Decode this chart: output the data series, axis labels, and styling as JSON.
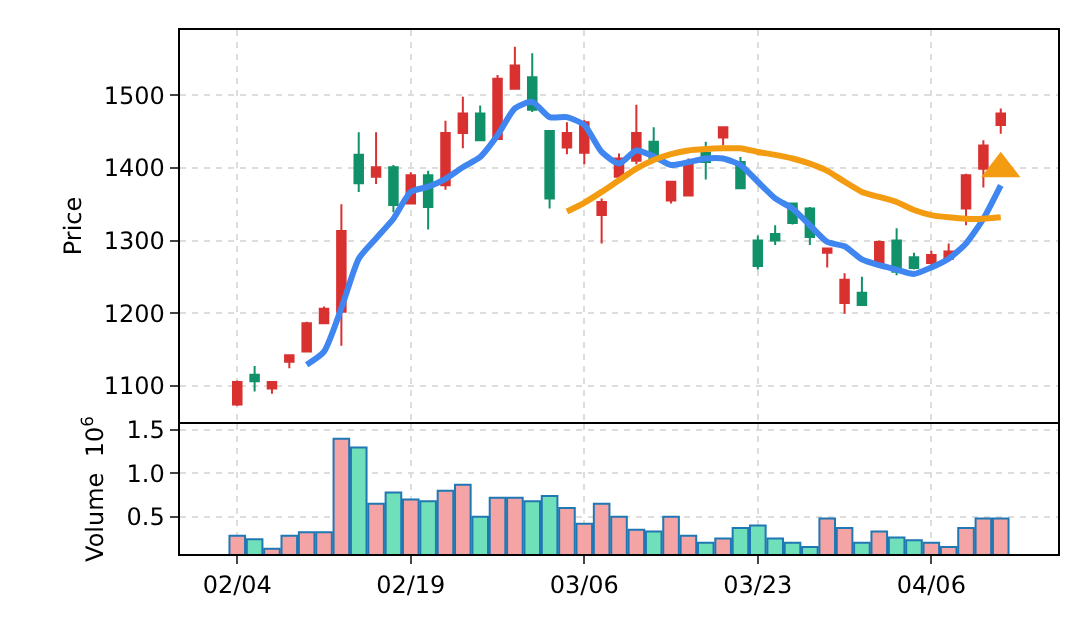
{
  "chart_data": [
    {
      "type": "candlestick",
      "ylabel": "Price",
      "categories": [
        null,
        null,
        null,
        null,
        null,
        null,
        null,
        null,
        null,
        null,
        null,
        null,
        null,
        null,
        null,
        null,
        null,
        null,
        null,
        null,
        null,
        null,
        null,
        null,
        null,
        null,
        null,
        null,
        null,
        null,
        null,
        null,
        null,
        null,
        null,
        null,
        null,
        null,
        null,
        null,
        null,
        null,
        null,
        null,
        null
      ],
      "ohlc": [
        [
          1074,
          1107,
          1072,
          1105
        ],
        [
          1115,
          1127,
          1092,
          1106
        ],
        [
          1096,
          1106,
          1089,
          1105
        ],
        [
          1133,
          1142,
          1124,
          1142
        ],
        [
          1147,
          1188,
          1146,
          1186
        ],
        [
          1186,
          1209,
          1186,
          1206
        ],
        [
          1202,
          1350,
          1155,
          1313
        ],
        [
          1418,
          1449,
          1367,
          1379
        ],
        [
          1388,
          1449,
          1378,
          1401
        ],
        [
          1401,
          1404,
          1339,
          1349
        ],
        [
          1351,
          1394,
          1351,
          1390
        ],
        [
          1390,
          1396,
          1315,
          1346
        ],
        [
          1376,
          1465,
          1370,
          1448
        ],
        [
          1448,
          1498,
          1427,
          1475
        ],
        [
          1475,
          1486,
          1438,
          1438
        ],
        [
          1440,
          1528,
          1440,
          1523
        ],
        [
          1509,
          1567,
          1509,
          1541
        ],
        [
          1525,
          1558,
          1477,
          1480
        ],
        [
          1451,
          1451,
          1344,
          1358
        ],
        [
          1428,
          1463,
          1419,
          1448
        ],
        [
          1421,
          1466,
          1405,
          1463
        ],
        [
          1335,
          1358,
          1296,
          1353
        ],
        [
          1388,
          1420,
          1385,
          1413
        ],
        [
          1410,
          1487,
          1405,
          1448
        ],
        [
          1436,
          1456,
          1408,
          1411
        ],
        [
          1355,
          1382,
          1351,
          1381
        ],
        [
          1362,
          1413,
          1362,
          1408
        ],
        [
          1421,
          1436,
          1384,
          1408
        ],
        [
          1442,
          1457,
          1431,
          1456
        ],
        [
          1408,
          1415,
          1371,
          1372
        ],
        [
          1300,
          1307,
          1260,
          1265
        ],
        [
          1309,
          1321,
          1294,
          1300
        ],
        [
          1351,
          1352,
          1322,
          1324
        ],
        [
          1344,
          1346,
          1294,
          1305
        ],
        [
          1283,
          1290,
          1263,
          1289
        ],
        [
          1214,
          1255,
          1199,
          1246
        ],
        [
          1228,
          1250,
          1211,
          1211
        ],
        [
          1266,
          1300,
          1264,
          1298
        ],
        [
          1300,
          1317,
          1252,
          1257
        ],
        [
          1277,
          1283,
          1260,
          1262
        ],
        [
          1269,
          1286,
          1266,
          1280
        ],
        [
          1275,
          1296,
          1274,
          1285
        ],
        [
          1344,
          1392,
          1321,
          1390
        ],
        [
          1399,
          1438,
          1373,
          1431
        ],
        [
          1459,
          1482,
          1447,
          1475
        ]
      ],
      "colors": [
        "#d93030",
        "#11916a",
        "#d93030",
        "#d93030",
        "#d93030",
        "#d93030",
        "#d93030",
        "#11916a",
        "#d93030",
        "#11916a",
        "#d93030",
        "#11916a",
        "#d93030",
        "#d93030",
        "#11916a",
        "#d93030",
        "#d93030",
        "#11916a",
        "#11916a",
        "#d93030",
        "#d93030",
        "#d93030",
        "#d93030",
        "#d93030",
        "#11916a",
        "#d93030",
        "#d93030",
        "#11916a",
        "#d93030",
        "#11916a",
        "#11916a",
        "#11916a",
        "#11916a",
        "#11916a",
        "#d93030",
        "#d93030",
        "#11916a",
        "#d93030",
        "#11916a",
        "#11916a",
        "#d93030",
        "#d93030",
        "#d93030",
        "#d93030",
        "#d93030"
      ],
      "series": [
        {
          "type": "line",
          "color": "#3f86f0",
          "values": [
            null,
            null,
            null,
            null,
            1129,
            1147,
            1207,
            1275,
            1303,
            1330,
            1367,
            1374,
            1385,
            1401,
            1415,
            1445,
            1482,
            1491,
            1470,
            1470,
            1459,
            1422,
            1406,
            1424,
            1416,
            1404,
            1408,
            1413,
            1413,
            1404,
            1381,
            1358,
            1344,
            1321,
            1298,
            1292,
            1274,
            1266,
            1260,
            1254,
            1263,
            1275,
            1296,
            1330,
            1376
          ]
        },
        {
          "type": "line",
          "color": "#f39c12",
          "values": [
            null,
            null,
            null,
            null,
            null,
            null,
            null,
            null,
            null,
            null,
            null,
            null,
            null,
            null,
            null,
            null,
            null,
            null,
            null,
            1340,
            1352,
            1367,
            1383,
            1399,
            1411,
            1419,
            1424,
            1426,
            1427,
            1427,
            1422,
            1418,
            1413,
            1406,
            1396,
            1381,
            1367,
            1360,
            1353,
            1342,
            1335,
            1332,
            1330,
            1330,
            1332
          ]
        },
        {
          "type": "scatter",
          "color": "#f39c12",
          "marker": "triangle",
          "values": [
            null,
            null,
            null,
            null,
            null,
            null,
            null,
            null,
            null,
            null,
            null,
            null,
            null,
            null,
            null,
            null,
            null,
            null,
            null,
            null,
            null,
            null,
            null,
            null,
            null,
            null,
            null,
            null,
            null,
            null,
            null,
            null,
            null,
            null,
            null,
            null,
            null,
            null,
            null,
            null,
            null,
            null,
            null,
            null,
            1399
          ]
        }
      ],
      "ylim": [
        1050,
        1590
      ],
      "yticks": [
        1100,
        1200,
        1300,
        1400,
        1500
      ],
      "grid": true,
      "tick_labels": "y"
    },
    {
      "type": "bar",
      "ylabel": "Volume  10$^{6}$",
      "categories": [
        "02/04",
        null,
        null,
        null,
        null,
        null,
        null,
        null,
        null,
        null,
        "02/19",
        null,
        null,
        null,
        null,
        null,
        null,
        null,
        null,
        null,
        "03/06",
        null,
        null,
        null,
        null,
        null,
        null,
        null,
        null,
        null,
        "03/23",
        null,
        null,
        null,
        null,
        null,
        null,
        null,
        null,
        null,
        "04/06",
        null,
        null,
        null,
        null
      ],
      "values": [
        0.28,
        0.24,
        0.13,
        0.28,
        0.32,
        0.32,
        1.4,
        1.3,
        0.65,
        0.78,
        0.7,
        0.68,
        0.8,
        0.87,
        0.5,
        0.72,
        0.72,
        0.68,
        0.74,
        0.6,
        0.42,
        0.65,
        0.5,
        0.35,
        0.33,
        0.5,
        0.28,
        0.2,
        0.25,
        0.37,
        0.4,
        0.25,
        0.2,
        0.15,
        0.48,
        0.37,
        0.2,
        0.33,
        0.26,
        0.23,
        0.2,
        0.15,
        0.37,
        0.48,
        0.48
      ],
      "colors": [
        "#f4a4a4",
        "#6fe0b9",
        "#f4a4a4",
        "#f4a4a4",
        "#f4a4a4",
        "#f4a4a4",
        "#f4a4a4",
        "#6fe0b9",
        "#f4a4a4",
        "#6fe0b9",
        "#f4a4a4",
        "#6fe0b9",
        "#f4a4a4",
        "#f4a4a4",
        "#6fe0b9",
        "#f4a4a4",
        "#f4a4a4",
        "#6fe0b9",
        "#6fe0b9",
        "#f4a4a4",
        "#f4a4a4",
        "#f4a4a4",
        "#f4a4a4",
        "#f4a4a4",
        "#6fe0b9",
        "#f4a4a4",
        "#f4a4a4",
        "#6fe0b9",
        "#f4a4a4",
        "#6fe0b9",
        "#6fe0b9",
        "#6fe0b9",
        "#6fe0b9",
        "#6fe0b9",
        "#f4a4a4",
        "#f4a4a4",
        "#6fe0b9",
        "#f4a4a4",
        "#6fe0b9",
        "#6fe0b9",
        "#f4a4a4",
        "#f4a4a4",
        "#f4a4a4",
        "#f4a4a4",
        "#f4a4a4"
      ],
      "ylim": [
        0.07,
        1.57
      ],
      "yticks": [
        0.5,
        {
          "value": 1.0,
          "label": "1.0"
        },
        1.5
      ],
      "grid": true
    }
  ]
}
